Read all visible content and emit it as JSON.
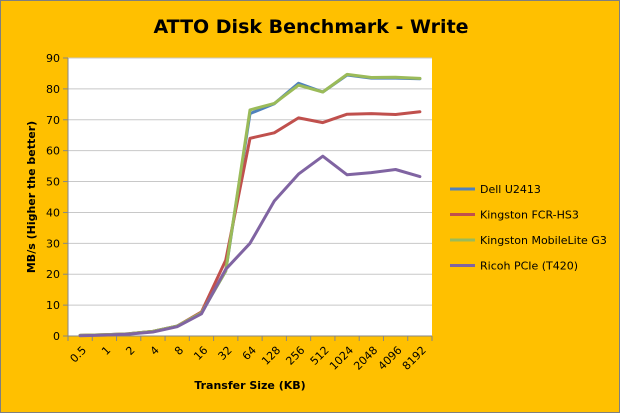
{
  "chart_data": {
    "type": "line",
    "title": "ATTO Disk Benchmark - Write",
    "xlabel": "Transfer Size (KB)",
    "ylabel": "MB/s (Higher the better)",
    "ylim": [
      0,
      90
    ],
    "y_ticks": [
      0,
      10,
      20,
      30,
      40,
      50,
      60,
      70,
      80,
      90
    ],
    "grid": "horizontal major gridlines",
    "legend_position": "right",
    "categories": [
      "0.5",
      "1",
      "2",
      "4",
      "8",
      "16",
      "32",
      "64",
      "128",
      "256",
      "512",
      "1024",
      "2048",
      "4096",
      "8192"
    ],
    "series": [
      {
        "name": "Dell U2413",
        "color": "#4f81bd",
        "values": [
          0.2,
          0.4,
          0.7,
          1.5,
          3.2,
          7.5,
          21.0,
          72.0,
          75.2,
          81.8,
          79.0,
          84.5,
          83.5,
          83.5,
          83.3
        ]
      },
      {
        "name": "Kingston FCR-HS3",
        "color": "#c0504d",
        "values": [
          0.2,
          0.4,
          0.7,
          1.5,
          3.2,
          7.8,
          24.5,
          64.0,
          65.8,
          70.6,
          69.1,
          71.8,
          72.0,
          71.7,
          72.6
        ]
      },
      {
        "name": "Kingston MobileLite G3",
        "color": "#9bbb59",
        "values": [
          0.2,
          0.4,
          0.7,
          1.5,
          3.2,
          7.5,
          21.0,
          73.2,
          75.3,
          81.2,
          79.0,
          84.7,
          83.7,
          83.8,
          83.4
        ]
      },
      {
        "name": "Ricoh PCIe (T420)",
        "color": "#8064a2",
        "values": [
          0.1,
          0.3,
          0.6,
          1.3,
          3.0,
          7.2,
          21.6,
          30.0,
          43.7,
          52.4,
          58.2,
          52.2,
          52.9,
          53.9,
          51.6
        ]
      }
    ]
  }
}
